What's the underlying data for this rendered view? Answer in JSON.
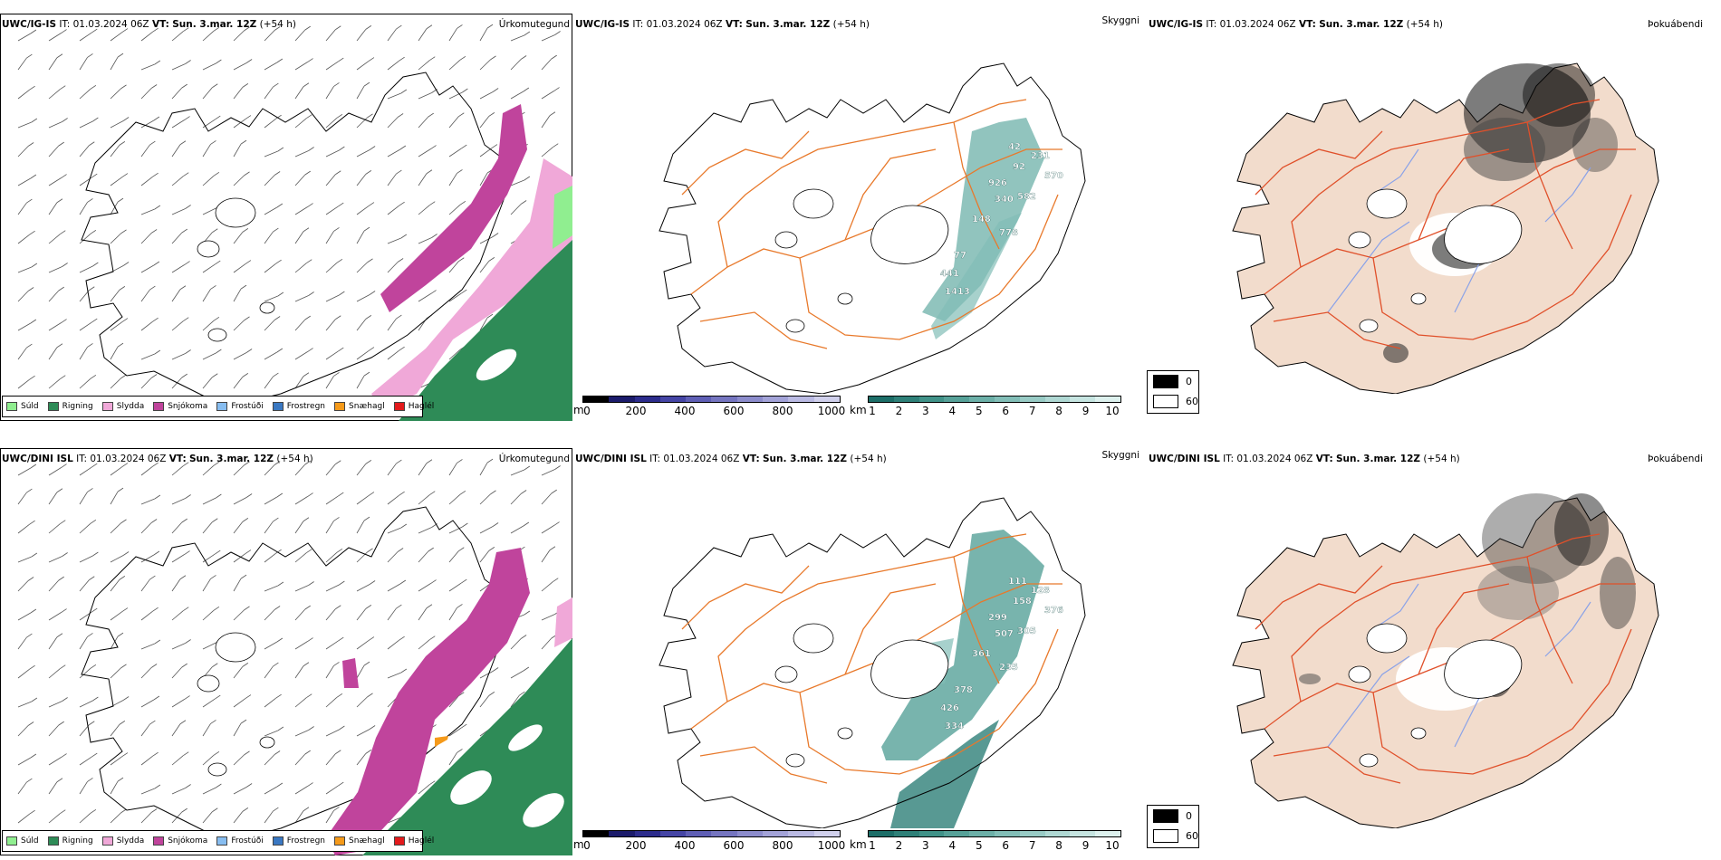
{
  "panels": [
    {
      "row": 0,
      "col": 0,
      "model": "UWC/IG-IS",
      "it_label": "IT:",
      "it": "01.03.2024 06Z",
      "vt_label": "VT:",
      "vt": "Sun. 3.mar. 12Z",
      "lead": "(+54 h)",
      "title": "Úrkomutegund"
    },
    {
      "row": 0,
      "col": 1,
      "model": "UWC/IG-IS",
      "it_label": "IT:",
      "it": "01.03.2024 06Z",
      "vt_label": "VT:",
      "vt": "Sun. 3.mar. 12Z",
      "lead": "(+54 h)",
      "title": "Skyggni"
    },
    {
      "row": 0,
      "col": 2,
      "model": "UWC/IG-IS",
      "it_label": "IT:",
      "it": "01.03.2024 06Z",
      "vt_label": "VT:",
      "vt": "Sun. 3.mar. 12Z",
      "lead": "(+54 h)",
      "title": "Þokuábendi"
    },
    {
      "row": 1,
      "col": 0,
      "model": "UWC/DINI ISL",
      "it_label": "IT:",
      "it": "01.03.2024 06Z",
      "vt_label": "VT:",
      "vt": "Sun. 3.mar. 12Z",
      "lead": "(+54 h)",
      "title": "Úrkomutegund"
    },
    {
      "row": 1,
      "col": 1,
      "model": "UWC/DINI ISL",
      "it_label": "IT:",
      "it": "01.03.2024 06Z",
      "vt_label": "VT:",
      "vt": "Sun. 3.mar. 12Z",
      "lead": "(+54 h)",
      "title": "Skyggni"
    },
    {
      "row": 1,
      "col": 2,
      "model": "UWC/DINI ISL",
      "it_label": "IT:",
      "it": "01.03.2024 06Z",
      "vt_label": "VT:",
      "vt": "Sun. 3.mar. 12Z",
      "lead": "(+54 h)",
      "title": "Þokuábendi"
    }
  ],
  "precip_legend": [
    {
      "label": "Súld",
      "color": "#90ee90"
    },
    {
      "label": "Rigning",
      "color": "#2e8b57"
    },
    {
      "label": "Slydda",
      "color": "#f0a8d8"
    },
    {
      "label": "Snjókoma",
      "color": "#c0449c"
    },
    {
      "label": "Frostúði",
      "color": "#87bdf0"
    },
    {
      "label": "Frostregn",
      "color": "#3a78c2"
    },
    {
      "label": "Snæhagl",
      "color": "#f59a1a"
    },
    {
      "label": "Haglél",
      "color": "#e31a1c"
    }
  ],
  "visibility_bar_m": {
    "unit": "m",
    "ticks": [
      "0",
      "200",
      "400",
      "600",
      "800",
      "1000"
    ],
    "colors": [
      "#000000",
      "#1b1b6b",
      "#2c2c8c",
      "#4545a5",
      "#5f5fb5",
      "#7575c0",
      "#8c8ccc",
      "#a3a3d8",
      "#babae3",
      "#d0d0ec"
    ]
  },
  "visibility_bar_km": {
    "unit": "km",
    "ticks": [
      "1",
      "2",
      "3",
      "4",
      "5",
      "6",
      "7",
      "8",
      "9",
      "10"
    ],
    "colors": [
      "#1c6e68",
      "#2e8078",
      "#409288",
      "#56a198",
      "#6cb0a8",
      "#82beb7",
      "#98cbc5",
      "#afd8d3",
      "#c6e5e1",
      "#ddf1ee"
    ]
  },
  "fog_legend": [
    {
      "label": "0",
      "color": "#000000"
    },
    {
      "label": "60",
      "color": "#ffffff"
    }
  ],
  "visibility_labels_row0": [
    "42",
    "231",
    "92",
    "570",
    "582",
    "340",
    "926",
    "148",
    "778",
    "77",
    "441",
    "1413"
  ],
  "visibility_labels_row1": [
    "111",
    "128",
    "158",
    "376",
    "305",
    "507",
    "299",
    "361",
    "235",
    "378",
    "426",
    "334"
  ],
  "colors": {
    "fog_land": "#f2dccc",
    "road_orange": "#e8792b",
    "road_red": "#e0502a",
    "river_blue": "#8aa2e8",
    "coast": "#000000"
  }
}
